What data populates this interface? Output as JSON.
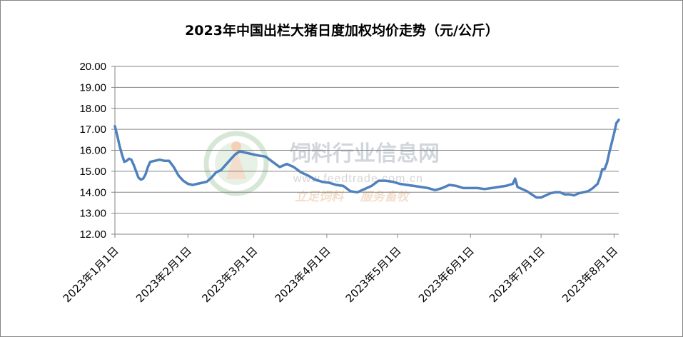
{
  "chart_data": {
    "type": "line",
    "title": "2023年中国出栏大猪日度加权均价走势（元/公斤）",
    "xlabel": "",
    "ylabel": "",
    "ylim": [
      12,
      20
    ],
    "yticks": [
      "12.00",
      "13.00",
      "14.00",
      "15.00",
      "16.00",
      "17.00",
      "18.00",
      "19.00",
      "20.00"
    ],
    "xlim": [
      "2023-01-01",
      "2023-08-03"
    ],
    "xticks": [
      "2023年1月1日",
      "2023年2月1日",
      "2023年3月1日",
      "2023年4月1日",
      "2023年5月1日",
      "2023年6月1日",
      "2023年7月1日",
      "2023年8月1日"
    ],
    "xtick_dates": [
      "2023-01-01",
      "2023-02-01",
      "2023-03-01",
      "2023-04-01",
      "2023-05-01",
      "2023-06-01",
      "2023-07-01",
      "2023-08-01"
    ],
    "grid": "horizontal",
    "legend": "none",
    "line_color": "#4f81bd",
    "series": [
      {
        "x": [
          "2023-01-01",
          "2023-01-02",
          "2023-01-03",
          "2023-01-04",
          "2023-01-05",
          "2023-01-06",
          "2023-01-07",
          "2023-01-08",
          "2023-01-09",
          "2023-01-10",
          "2023-01-11",
          "2023-01-12",
          "2023-01-13",
          "2023-01-14",
          "2023-01-15",
          "2023-01-16",
          "2023-01-18",
          "2023-01-20",
          "2023-01-22",
          "2023-01-24",
          "2023-01-26",
          "2023-01-28",
          "2023-01-30",
          "2023-02-01",
          "2023-02-03",
          "2023-02-05",
          "2023-02-07",
          "2023-02-09",
          "2023-02-11",
          "2023-02-13",
          "2023-02-15",
          "2023-02-17",
          "2023-02-19",
          "2023-02-21",
          "2023-02-23",
          "2023-02-25",
          "2023-02-27",
          "2023-03-01",
          "2023-03-03",
          "2023-03-06",
          "2023-03-09",
          "2023-03-12",
          "2023-03-15",
          "2023-03-18",
          "2023-03-21",
          "2023-03-24",
          "2023-03-27",
          "2023-03-30",
          "2023-04-02",
          "2023-04-05",
          "2023-04-08",
          "2023-04-11",
          "2023-04-14",
          "2023-04-17",
          "2023-04-20",
          "2023-04-23",
          "2023-04-26",
          "2023-04-29",
          "2023-05-02",
          "2023-05-05",
          "2023-05-08",
          "2023-05-11",
          "2023-05-14",
          "2023-05-17",
          "2023-05-20",
          "2023-05-23",
          "2023-05-26",
          "2023-05-29",
          "2023-06-01",
          "2023-06-04",
          "2023-06-07",
          "2023-06-10",
          "2023-06-13",
          "2023-06-16",
          "2023-06-19",
          "2023-06-20",
          "2023-06-21",
          "2023-06-22",
          "2023-06-23",
          "2023-06-25",
          "2023-06-27",
          "2023-06-29",
          "2023-07-01",
          "2023-07-03",
          "2023-07-05",
          "2023-07-07",
          "2023-07-09",
          "2023-07-11",
          "2023-07-13",
          "2023-07-15",
          "2023-07-17",
          "2023-07-19",
          "2023-07-21",
          "2023-07-23",
          "2023-07-25",
          "2023-07-26",
          "2023-07-27",
          "2023-07-28",
          "2023-07-29",
          "2023-07-30",
          "2023-07-31",
          "2023-08-01",
          "2023-08-02",
          "2023-08-03"
        ],
        "values": [
          17.15,
          16.7,
          16.2,
          15.8,
          15.45,
          15.5,
          15.6,
          15.55,
          15.3,
          15.0,
          14.7,
          14.6,
          14.65,
          14.85,
          15.2,
          15.45,
          15.5,
          15.55,
          15.5,
          15.5,
          15.2,
          14.8,
          14.55,
          14.4,
          14.35,
          14.4,
          14.45,
          14.5,
          14.7,
          14.95,
          15.05,
          15.3,
          15.55,
          15.8,
          15.95,
          15.9,
          15.85,
          15.8,
          15.75,
          15.7,
          15.45,
          15.2,
          15.35,
          15.2,
          14.95,
          14.8,
          14.6,
          14.5,
          14.45,
          14.35,
          14.3,
          14.05,
          14.0,
          14.15,
          14.3,
          14.55,
          14.55,
          14.5,
          14.4,
          14.35,
          14.3,
          14.25,
          14.2,
          14.1,
          14.2,
          14.35,
          14.3,
          14.2,
          14.2,
          14.2,
          14.15,
          14.2,
          14.25,
          14.3,
          14.4,
          14.65,
          14.25,
          14.2,
          14.15,
          14.05,
          13.9,
          13.75,
          13.75,
          13.85,
          13.95,
          14.0,
          14.0,
          13.9,
          13.9,
          13.85,
          13.95,
          14.0,
          14.05,
          14.2,
          14.4,
          14.7,
          15.1,
          15.1,
          15.4,
          15.9,
          16.35,
          16.8,
          17.3,
          17.45
        ]
      }
    ]
  },
  "watermark": {
    "name": "饲料行业信息网",
    "url": "www.feedtrade.com.cn",
    "slogan": "立足饲料    服务畜牧"
  }
}
